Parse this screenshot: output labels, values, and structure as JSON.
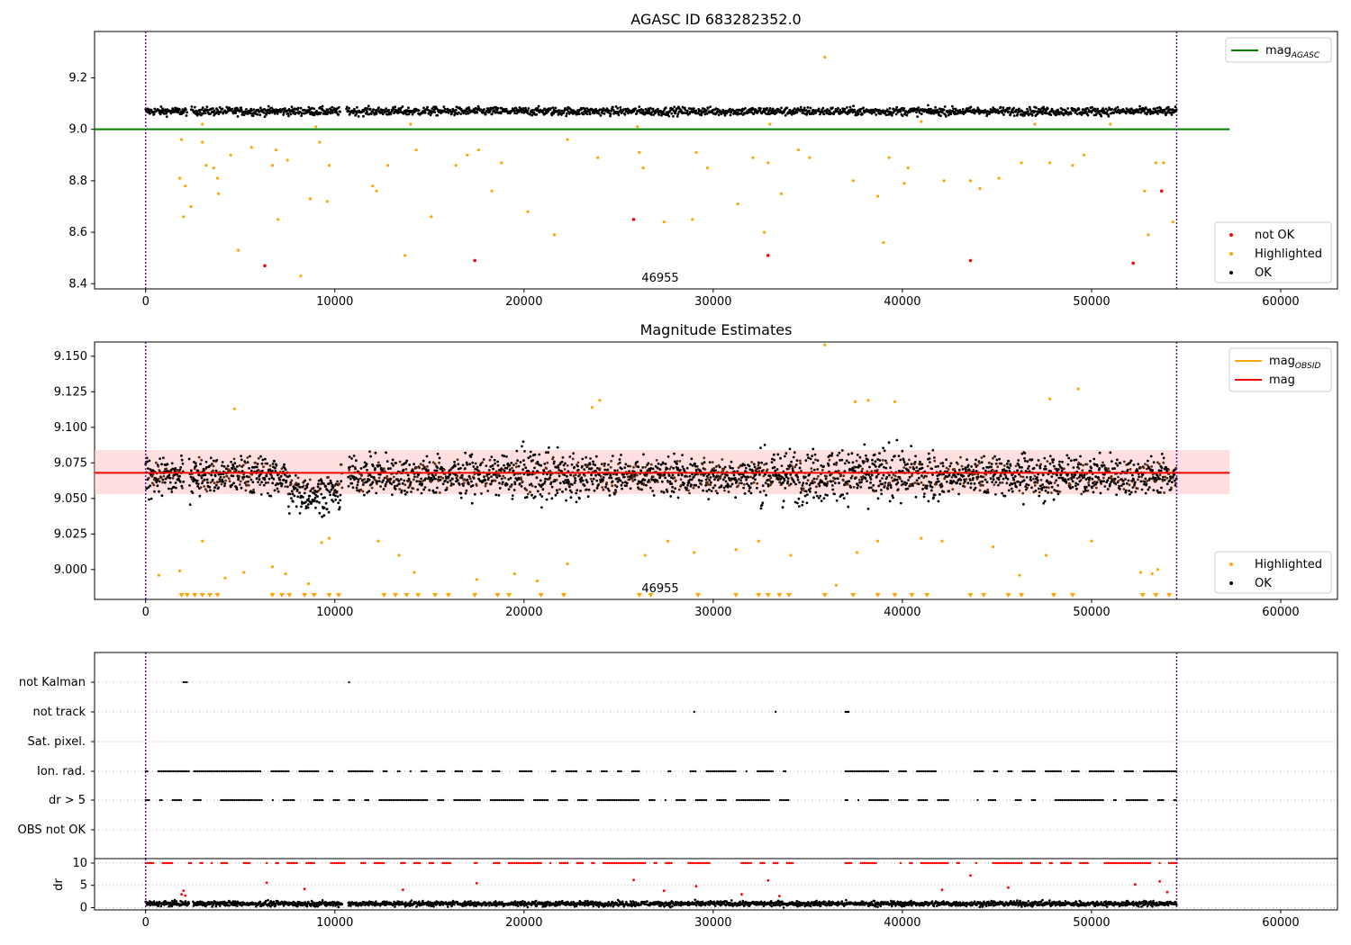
{
  "chart_data": [
    {
      "type": "scatter",
      "title": "AGASC ID 683282352.0",
      "xlim": [
        -2700,
        63000
      ],
      "ylim": [
        8.38,
        9.38
      ],
      "xticks": [
        0,
        10000,
        20000,
        30000,
        40000,
        50000,
        60000
      ],
      "yticks": [
        8.4,
        8.6,
        8.8,
        9.0,
        9.2
      ],
      "ytick_labels": [
        "8.4",
        "8.6",
        "8.8",
        "9.0",
        "9.2"
      ],
      "vlines": [
        0,
        54500
      ],
      "reference_line": {
        "name": "mag_AGASC",
        "y": 9.0,
        "x_range": [
          -2700,
          57300
        ],
        "color": "#008000"
      },
      "annotation": {
        "text": "46955",
        "x": 27200,
        "y": 8.38
      },
      "series": [
        {
          "name": "OK",
          "color": "#000000",
          "band": {
            "center": 9.07,
            "width": 0.045
          },
          "x_range": [
            0,
            54500
          ]
        },
        {
          "name": "Highlighted",
          "color": "#ffa500",
          "points": [
            [
              1800,
              8.81
            ],
            [
              1900,
              8.96
            ],
            [
              2000,
              8.66
            ],
            [
              2100,
              8.78
            ],
            [
              2400,
              8.7
            ],
            [
              3000,
              8.95
            ],
            [
              3200,
              8.86
            ],
            [
              3600,
              8.85
            ],
            [
              3800,
              8.81
            ],
            [
              3850,
              8.75
            ],
            [
              4500,
              8.9
            ],
            [
              4900,
              8.53
            ],
            [
              5600,
              8.93
            ],
            [
              6700,
              8.86
            ],
            [
              6900,
              8.92
            ],
            [
              7000,
              8.65
            ],
            [
              7500,
              8.88
            ],
            [
              8200,
              8.43
            ],
            [
              8700,
              8.73
            ],
            [
              9200,
              8.95
            ],
            [
              9600,
              8.72
            ],
            [
              9700,
              8.86
            ],
            [
              12000,
              8.78
            ],
            [
              12200,
              8.76
            ],
            [
              12800,
              8.86
            ],
            [
              13700,
              8.51
            ],
            [
              14300,
              8.92
            ],
            [
              15100,
              8.66
            ],
            [
              16400,
              8.86
            ],
            [
              17000,
              8.9
            ],
            [
              17600,
              8.92
            ],
            [
              18300,
              8.76
            ],
            [
              18800,
              8.87
            ],
            [
              20200,
              8.68
            ],
            [
              21600,
              8.59
            ],
            [
              22300,
              8.96
            ],
            [
              23900,
              8.89
            ],
            [
              26100,
              8.91
            ],
            [
              26300,
              8.85
            ],
            [
              27400,
              8.64
            ],
            [
              28900,
              8.65
            ],
            [
              29100,
              8.91
            ],
            [
              29700,
              8.85
            ],
            [
              31300,
              8.71
            ],
            [
              32100,
              8.89
            ],
            [
              32700,
              8.6
            ],
            [
              32900,
              8.87
            ],
            [
              33600,
              8.75
            ],
            [
              34500,
              8.92
            ],
            [
              35100,
              8.89
            ],
            [
              35900,
              9.28
            ],
            [
              37400,
              8.8
            ],
            [
              38700,
              8.74
            ],
            [
              39000,
              8.56
            ],
            [
              39300,
              8.89
            ],
            [
              40100,
              8.79
            ],
            [
              40300,
              8.85
            ],
            [
              42200,
              8.8
            ],
            [
              43600,
              8.8
            ],
            [
              44100,
              8.77
            ],
            [
              45100,
              8.81
            ],
            [
              46300,
              8.87
            ],
            [
              47800,
              8.87
            ],
            [
              49000,
              8.86
            ],
            [
              49600,
              8.9
            ],
            [
              52800,
              8.76
            ],
            [
              53000,
              8.59
            ],
            [
              53400,
              8.87
            ],
            [
              53800,
              8.87
            ],
            [
              54300,
              8.64
            ],
            [
              3000,
              9.02
            ],
            [
              9000,
              9.01
            ],
            [
              14000,
              9.02
            ],
            [
              26000,
              9.01
            ],
            [
              33000,
              9.02
            ],
            [
              41000,
              9.03
            ],
            [
              47000,
              9.02
            ],
            [
              51000,
              9.02
            ]
          ]
        },
        {
          "name": "not OK",
          "color": "#ff0000",
          "points": [
            [
              6300,
              8.47
            ],
            [
              17400,
              8.49
            ],
            [
              25800,
              8.65
            ],
            [
              32900,
              8.51
            ],
            [
              43600,
              8.49
            ],
            [
              52200,
              8.48
            ],
            [
              53700,
              8.76
            ]
          ]
        }
      ],
      "legend": [
        {
          "position": "upper-right",
          "entries": [
            {
              "name": "mag",
              "sub": "AGASC",
              "kind": "line",
              "color": "#008000"
            }
          ]
        },
        {
          "position": "lower-right",
          "entries": [
            {
              "name": "not OK",
              "kind": "marker",
              "color": "#ff0000"
            },
            {
              "name": "Highlighted",
              "kind": "marker",
              "color": "#ffa500"
            },
            {
              "name": "OK",
              "kind": "marker",
              "color": "#000000"
            }
          ]
        }
      ]
    },
    {
      "type": "scatter",
      "title": "Magnitude Estimates",
      "xlim": [
        -2700,
        63000
      ],
      "ylim": [
        8.979,
        9.16
      ],
      "xticks": [
        0,
        10000,
        20000,
        30000,
        40000,
        50000,
        60000
      ],
      "yticks": [
        9.0,
        9.025,
        9.05,
        9.075,
        9.1,
        9.125,
        9.15
      ],
      "ytick_labels": [
        "9.000",
        "9.025",
        "9.050",
        "9.075",
        "9.100",
        "9.125",
        "9.150"
      ],
      "vlines": [
        0,
        54500
      ],
      "reference_line": {
        "name": "mag",
        "y": 9.068,
        "x_range": [
          -2700,
          57300
        ],
        "color": "#ff0000"
      },
      "band": {
        "y0": 9.053,
        "y1": 9.084,
        "x_range": [
          -2700,
          57300
        ],
        "color": "#ffc0c0"
      },
      "annotation": {
        "text": "46955",
        "x": 27200,
        "y": 8.979
      },
      "series": [
        {
          "name": "OK",
          "color": "#000000",
          "band": {
            "center": 9.066,
            "width": 0.032
          },
          "x_range": [
            0,
            54500
          ]
        },
        {
          "name": "Highlighted",
          "color": "#ffa500",
          "points": [
            [
              4700,
              9.113
            ],
            [
              23600,
              9.114
            ],
            [
              24000,
              9.119
            ],
            [
              35900,
              9.158
            ],
            [
              37500,
              9.118
            ],
            [
              38200,
              9.119
            ],
            [
              39600,
              9.118
            ],
            [
              47800,
              9.12
            ],
            [
              49300,
              9.127
            ],
            [
              700,
              8.996
            ],
            [
              1800,
              8.999
            ],
            [
              3000,
              9.02
            ],
            [
              4200,
              8.994
            ],
            [
              5200,
              8.998
            ],
            [
              6700,
              9.002
            ],
            [
              7400,
              8.997
            ],
            [
              8600,
              8.99
            ],
            [
              9300,
              9.019
            ],
            [
              9700,
              9.022
            ],
            [
              12300,
              9.02
            ],
            [
              13400,
              9.01
            ],
            [
              14200,
              8.998
            ],
            [
              17500,
              8.993
            ],
            [
              19500,
              8.997
            ],
            [
              20700,
              8.992
            ],
            [
              22300,
              9.004
            ],
            [
              26400,
              9.01
            ],
            [
              27600,
              9.02
            ],
            [
              29000,
              9.012
            ],
            [
              31200,
              9.014
            ],
            [
              32400,
              9.02
            ],
            [
              34100,
              9.01
            ],
            [
              36500,
              8.989
            ],
            [
              37600,
              9.012
            ],
            [
              38700,
              9.02
            ],
            [
              41000,
              9.022
            ],
            [
              42100,
              9.02
            ],
            [
              44800,
              9.016
            ],
            [
              46200,
              8.996
            ],
            [
              47600,
              9.01
            ],
            [
              50000,
              9.02
            ],
            [
              52600,
              8.998
            ],
            [
              53200,
              8.997
            ],
            [
              53500,
              9.0
            ]
          ]
        },
        {
          "name": "Highlighted (off-scale)",
          "color": "#ffa500",
          "marker": "triangle-down",
          "y": 8.979,
          "x_values": [
            1900,
            2200,
            2600,
            3000,
            3400,
            3800,
            6700,
            7200,
            7600,
            8400,
            8900,
            9700,
            10200,
            12600,
            13200,
            13800,
            14400,
            15300,
            16000,
            17400,
            18600,
            19200,
            20900,
            22100,
            26100,
            26700,
            29200,
            31200,
            32400,
            32900,
            33500,
            34000,
            35900,
            37400,
            38700,
            39600,
            40500,
            41300,
            43600,
            44300,
            45600,
            46300,
            48000,
            49000,
            52700,
            53400,
            54100
          ]
        }
      ],
      "legend": [
        {
          "position": "upper-right",
          "entries": [
            {
              "name": "mag",
              "sub": "OBSID",
              "kind": "line",
              "color": "#ffa500"
            },
            {
              "name": "mag",
              "kind": "line",
              "color": "#ff0000"
            }
          ]
        },
        {
          "position": "lower-right",
          "entries": [
            {
              "name": "Highlighted",
              "kind": "marker",
              "color": "#ffa500"
            },
            {
              "name": "OK",
              "kind": "marker",
              "color": "#000000"
            }
          ]
        }
      ]
    },
    {
      "type": "scatter",
      "title": "",
      "xlim": [
        -2700,
        63000
      ],
      "xticks": [
        0,
        10000,
        20000,
        30000,
        40000,
        50000,
        60000
      ],
      "vlines": [
        0,
        54500
      ],
      "categories": [
        "not Kalman",
        "not track",
        "Sat. pixel.",
        "Ion. rad.",
        "dr > 5",
        "OBS not OK"
      ],
      "flag_segments": {
        "not Kalman": [
          [
            2000,
            2500
          ],
          [
            10300,
            10800
          ]
        ],
        "not track": [
          [
            29000,
            29000
          ],
          [
            33300,
            33300
          ],
          [
            37000,
            37200
          ]
        ],
        "Sat. pixel.": [],
        "Ion. rad.": [
          [
            0,
            34200
          ],
          [
            37000,
            54500
          ]
        ],
        "dr > 5": [
          [
            0,
            34200
          ],
          [
            37000,
            54500
          ]
        ],
        "OBS not OK": []
      },
      "gaps": [
        [
          2300,
          2500
        ],
        [
          10300,
          10700
        ]
      ]
    },
    {
      "type": "scatter",
      "title": "",
      "ylabel": "dr",
      "xlim": [
        -2700,
        63000
      ],
      "ylim": [
        -0.5,
        11
      ],
      "xticks": [
        0,
        10000,
        20000,
        30000,
        40000,
        50000,
        60000
      ],
      "yticks": [
        0,
        5,
        10
      ],
      "ytick_labels": [
        "0",
        "5",
        "10"
      ],
      "vlines": [
        0,
        54500
      ],
      "series": [
        {
          "name": "dr OK",
          "color": "#000000",
          "band": {
            "center": 0.9,
            "width": 1.6
          },
          "x_range": [
            0,
            54500
          ]
        },
        {
          "name": "dr capped",
          "color": "#ff0000",
          "y": 10,
          "x_range": [
            0,
            54500
          ]
        },
        {
          "name": "dr outliers",
          "color": "#ff0000",
          "points": [
            [
              1900,
              3
            ],
            [
              2000,
              3.8
            ],
            [
              2100,
              2.7
            ],
            [
              6400,
              5.6
            ],
            [
              8400,
              4.2
            ],
            [
              13600,
              4
            ],
            [
              17500,
              5.5
            ],
            [
              25800,
              6.2
            ],
            [
              27400,
              3.8
            ],
            [
              29100,
              4.8
            ],
            [
              31500,
              3
            ],
            [
              32900,
              6.1
            ],
            [
              33500,
              2.6
            ],
            [
              42100,
              4
            ],
            [
              43600,
              7.2
            ],
            [
              45600,
              4.5
            ],
            [
              52300,
              5.2
            ],
            [
              53600,
              5.9
            ],
            [
              54000,
              3.5
            ]
          ]
        }
      ]
    }
  ]
}
